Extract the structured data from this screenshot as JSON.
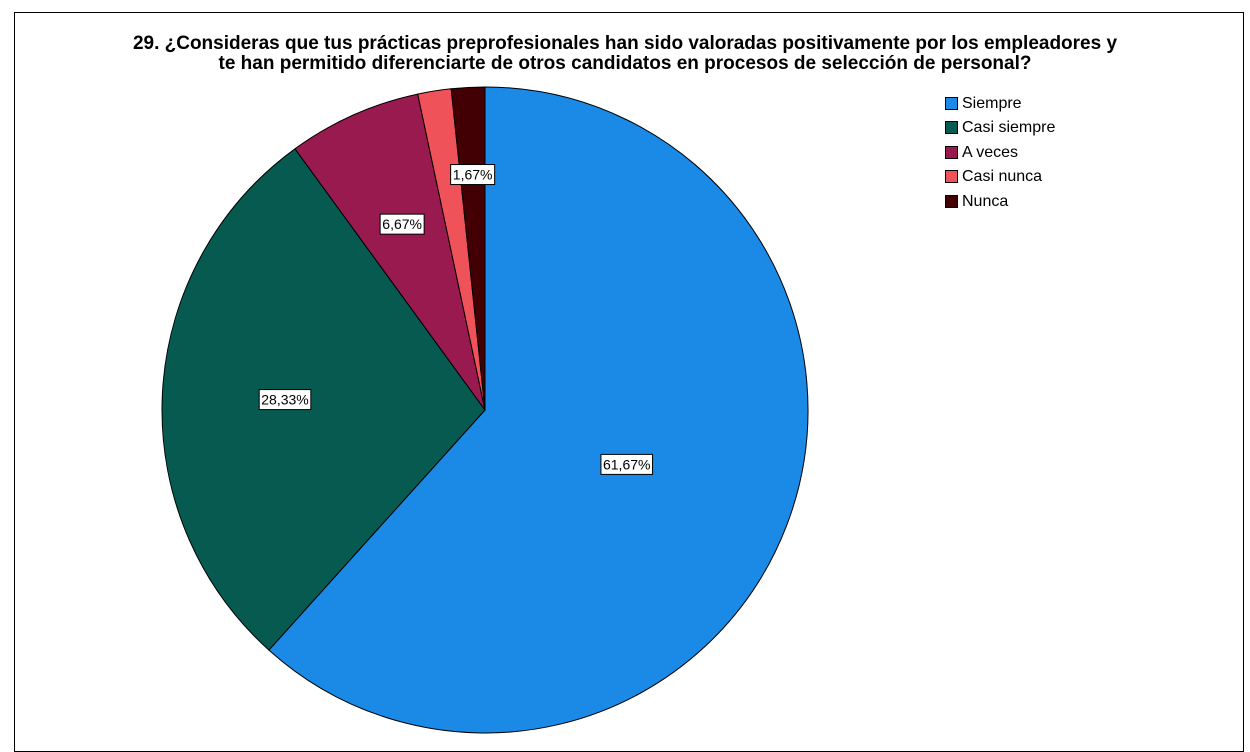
{
  "chart_data": {
    "type": "pie",
    "title": "29. ¿Consideras que tus prácticas preprofesionales han sido valoradas positivamente por los empleadores y te han permitido diferenciarte de otros candidatos en procesos de selección de personal?",
    "title_lines": [
      "29. ¿Consideras que tus prácticas preprofesionales han sido valoradas positivamente por los empleadores y",
      "te han permitido diferenciarte de otros candidatos en procesos de selección de personal?"
    ],
    "categories": [
      "Siempre",
      "Casi siempre",
      "A veces",
      "Casi nunca",
      "Nunca"
    ],
    "values": [
      61.67,
      28.33,
      6.67,
      1.67,
      1.67
    ],
    "data_labels": [
      "61,67%",
      "28,33%",
      "6,67%",
      "",
      "1,67%"
    ],
    "colors": [
      "#1a8ae6",
      "#075a50",
      "#991a4e",
      "#f0525a",
      "#420005"
    ],
    "legend_placement": "top-right",
    "start": "top",
    "direction": "clockwise"
  }
}
